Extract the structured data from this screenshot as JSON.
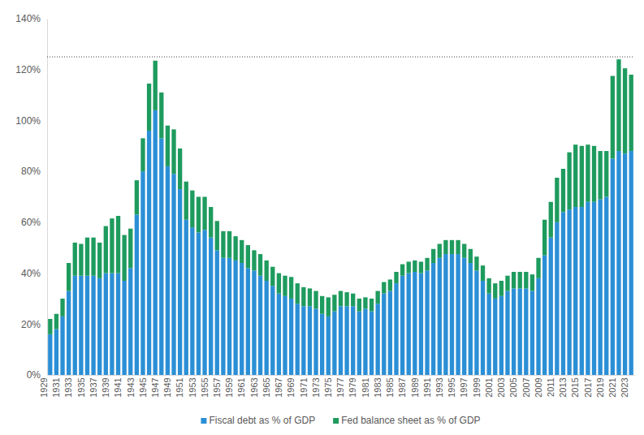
{
  "chart_data": {
    "type": "bar",
    "stacked": true,
    "grid": false,
    "legend": "bottom",
    "categories": [
      "1929",
      null,
      "1931",
      null,
      "1933",
      null,
      "1935",
      null,
      "1937",
      null,
      "1939",
      null,
      "1941",
      null,
      "1943",
      null,
      "1945",
      null,
      "1947",
      null,
      "1949",
      null,
      "1951",
      null,
      "1953",
      null,
      "1955",
      null,
      "1957",
      null,
      "1959",
      null,
      "1961",
      null,
      "1963",
      null,
      "1965",
      null,
      "1967",
      null,
      "1969",
      null,
      "1971",
      null,
      "1973",
      null,
      "1975",
      null,
      "1977",
      null,
      "1979",
      null,
      "1981",
      null,
      "1983",
      null,
      "1985",
      null,
      "1987",
      null,
      "1989",
      null,
      "1991",
      null,
      "1993",
      null,
      "1995",
      null,
      "1997",
      null,
      "1999",
      null,
      "2001",
      null,
      "2003",
      null,
      "2005",
      null,
      "2007",
      null,
      "2009",
      null,
      "2011",
      null,
      "2013",
      null,
      "2015",
      null,
      "2017",
      null,
      "2019",
      null,
      "2021",
      null,
      "2023"
    ],
    "series": [
      {
        "name": "Fiscal debt as % of GDP",
        "color": "#2b8fd6",
        "values": [
          16,
          18,
          23,
          33,
          39,
          39,
          39,
          39,
          38,
          40,
          40,
          40,
          37,
          42,
          63,
          80,
          96,
          104,
          93,
          82,
          79,
          73,
          61,
          58,
          56,
          57,
          54,
          49,
          46,
          46,
          45,
          44,
          42,
          41,
          39,
          37,
          35,
          32,
          31,
          30,
          28,
          27,
          27,
          26,
          24,
          23,
          25,
          27,
          27,
          27,
          25,
          26,
          25,
          28,
          32,
          33,
          36,
          39,
          40,
          40.5,
          40,
          41,
          44,
          46,
          47.5,
          47.5,
          47.5,
          46,
          44,
          41,
          37,
          32,
          30,
          31,
          33,
          34,
          34,
          34,
          33,
          38,
          47,
          54,
          60,
          64,
          65,
          66,
          66,
          68,
          68,
          69,
          70,
          85,
          88,
          87,
          88
        ]
      },
      {
        "name": "Fed balance sheet as % of GDP",
        "color": "#1e9b5e",
        "values": [
          6,
          6,
          7,
          11,
          13,
          12.5,
          15,
          15,
          14,
          18.5,
          21.5,
          22.5,
          18,
          15.5,
          13.5,
          13,
          18.5,
          19.5,
          18,
          16,
          17.5,
          16,
          15,
          14.5,
          14,
          13,
          12,
          11.5,
          10.5,
          10.5,
          9.5,
          9,
          9,
          8,
          8.5,
          8,
          7.5,
          8,
          8,
          8.5,
          8,
          7.5,
          7,
          7,
          7,
          7.5,
          6.5,
          6,
          5.5,
          5,
          5,
          4.5,
          5,
          5,
          4.5,
          4.5,
          4.5,
          4.5,
          4.5,
          4.5,
          4.5,
          5,
          5.5,
          5.5,
          5.5,
          5.5,
          5.5,
          5.5,
          5.5,
          5.5,
          6,
          6,
          6,
          6,
          6,
          6.5,
          6.5,
          6.5,
          6.5,
          8,
          14,
          14,
          17.5,
          17,
          22.5,
          24.5,
          24,
          22.5,
          22,
          19,
          18,
          32.5,
          36,
          33.5,
          30
        ]
      }
    ],
    "ylim": [
      0,
      140
    ],
    "yticks": [
      {
        "value": 0,
        "label": "0%"
      },
      {
        "value": 20,
        "label": "20%"
      },
      {
        "value": 40,
        "label": "40%"
      },
      {
        "value": 60,
        "label": "60%"
      },
      {
        "value": 80,
        "label": "80%"
      },
      {
        "value": 100,
        "label": "100%"
      },
      {
        "value": 120,
        "label": "120%"
      },
      {
        "value": 140,
        "label": "140%"
      }
    ],
    "reference_line": 125
  }
}
